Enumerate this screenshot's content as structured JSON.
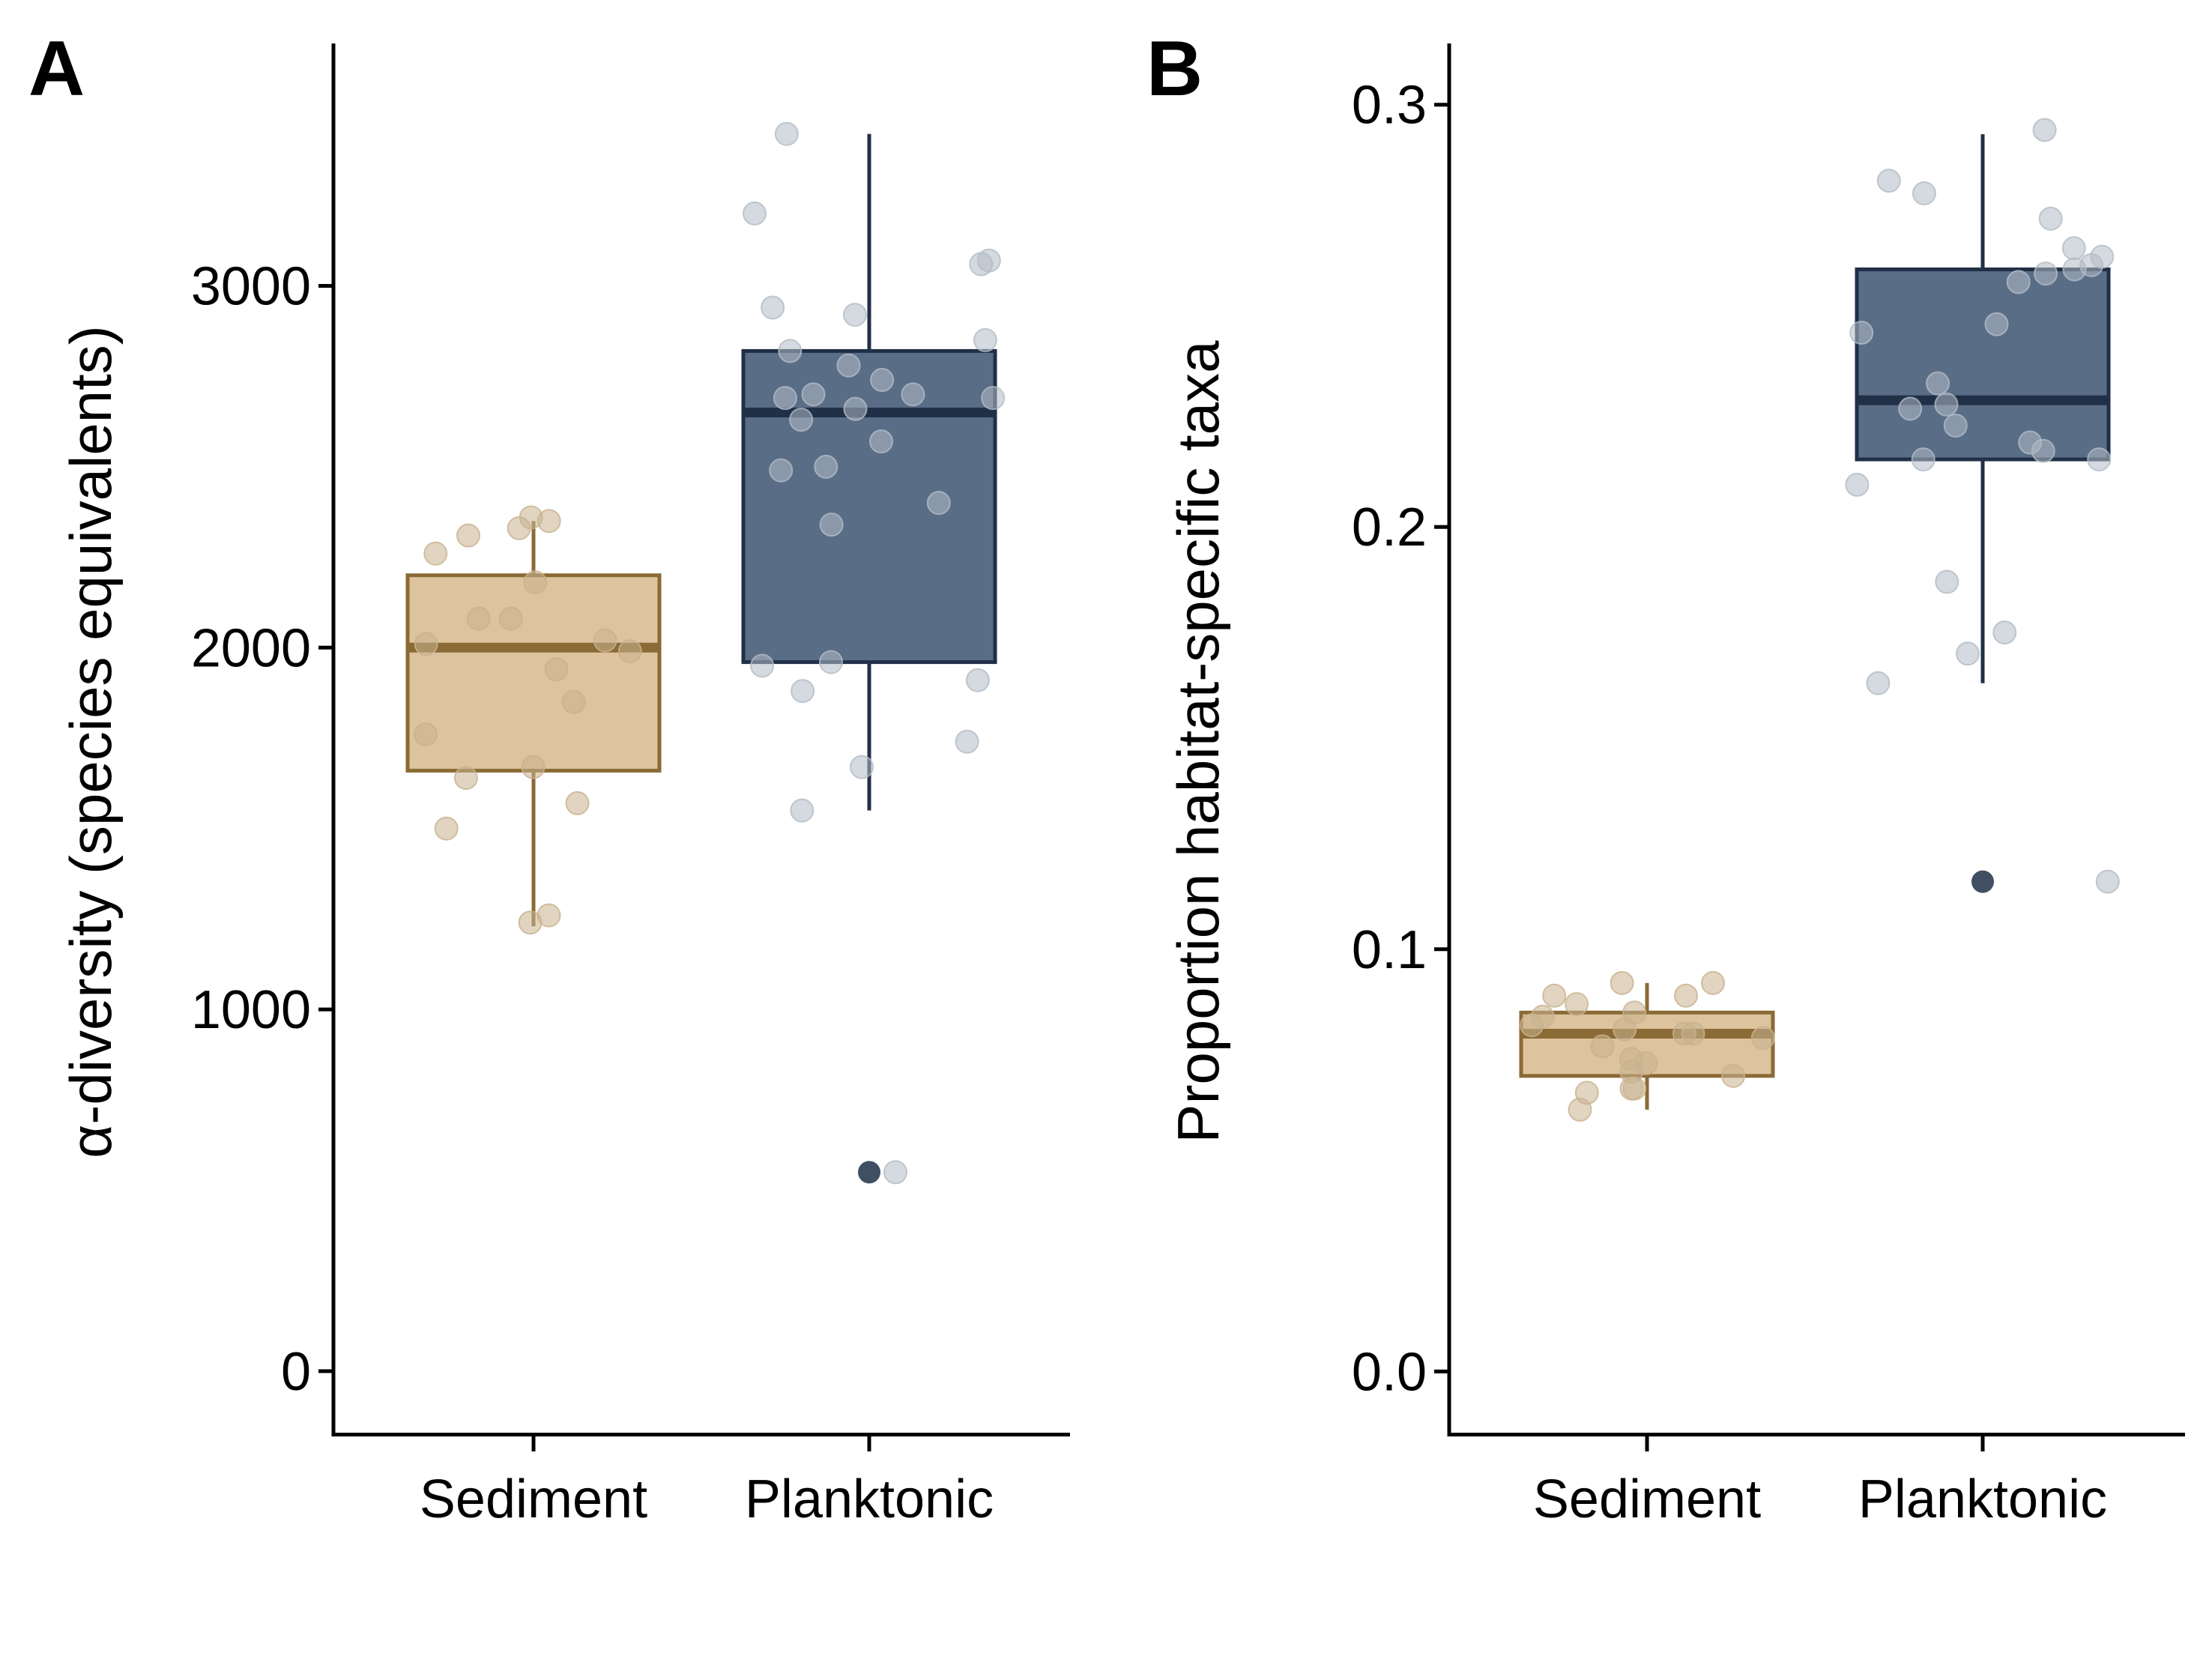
{
  "colors": {
    "sediment": "#8a6a35",
    "sediment_fill": "#ddc49e",
    "planktonic": "#1f3047",
    "planktonic_fill": "#5a6d86",
    "jitter_sediment": "#c9b28f",
    "jitter_planktonic": "#b2bbc6"
  },
  "chart_data": [
    {
      "type": "box",
      "panel_label": "A",
      "ylabel": "α-diversity (species equivalents)",
      "xlabel": "",
      "categories": [
        "Sediment",
        "Planktonic"
      ],
      "ylim": [
        -170,
        3670
      ],
      "yticks": [
        0,
        1000,
        2000,
        3000
      ],
      "ytick_labels": [
        "0",
        "1000",
        "2000",
        "3000"
      ],
      "boxes": [
        {
          "category": "Sediment",
          "whisker_low": 1230,
          "q1": 1660,
          "median": 2000,
          "q3": 2200,
          "whisker_high": 2350,
          "outliers": [],
          "points": [
            2360,
            2350,
            2260,
            2310,
            2330,
            2180,
            2010,
            1990,
            1940,
            2080,
            2080,
            2020,
            1850,
            1760,
            1670,
            1640,
            1570,
            1500,
            1260,
            1240
          ]
        },
        {
          "category": "Planktonic",
          "whisker_low": 1550,
          "q1": 1960,
          "median": 2650,
          "q3": 2820,
          "whisker_high": 3420,
          "outliers": [
            550
          ],
          "points": [
            3420,
            3200,
            3060,
            3070,
            2940,
            2920,
            2850,
            2820,
            2780,
            2740,
            2700,
            2700,
            2690,
            2690,
            2660,
            2630,
            2570,
            2500,
            2490,
            2400,
            2340,
            1960,
            1950,
            1910,
            1880,
            1740,
            1670,
            1550,
            550
          ]
        }
      ]
    },
    {
      "type": "box",
      "panel_label": "B",
      "ylabel": "Proportion habitat-specific taxa",
      "xlabel": "",
      "categories": [
        "Sediment",
        "Planktonic"
      ],
      "ylim": [
        -0.0145,
        0.3145
      ],
      "yticks": [
        0.0,
        0.1,
        0.2,
        0.3
      ],
      "ytick_labels": [
        "0.0",
        "0.1",
        "0.2",
        "0.3"
      ],
      "boxes": [
        {
          "category": "Sediment",
          "whisker_low": 0.062,
          "q1": 0.07,
          "median": 0.08,
          "q3": 0.085,
          "whisker_high": 0.092,
          "outliers": [],
          "points": [
            0.092,
            0.092,
            0.089,
            0.089,
            0.087,
            0.085,
            0.084,
            0.082,
            0.081,
            0.08,
            0.08,
            0.079,
            0.077,
            0.074,
            0.073,
            0.071,
            0.07,
            0.067,
            0.067,
            0.066,
            0.062
          ]
        },
        {
          "category": "Planktonic",
          "whisker_low": 0.163,
          "q1": 0.216,
          "median": 0.23,
          "q3": 0.261,
          "whisker_high": 0.293,
          "outliers": [
            0.116
          ],
          "points": [
            0.294,
            0.282,
            0.279,
            0.273,
            0.266,
            0.264,
            0.262,
            0.261,
            0.26,
            0.258,
            0.248,
            0.246,
            0.234,
            0.229,
            0.228,
            0.224,
            0.22,
            0.218,
            0.216,
            0.216,
            0.21,
            0.187,
            0.175,
            0.17,
            0.163,
            0.116
          ]
        }
      ]
    }
  ]
}
